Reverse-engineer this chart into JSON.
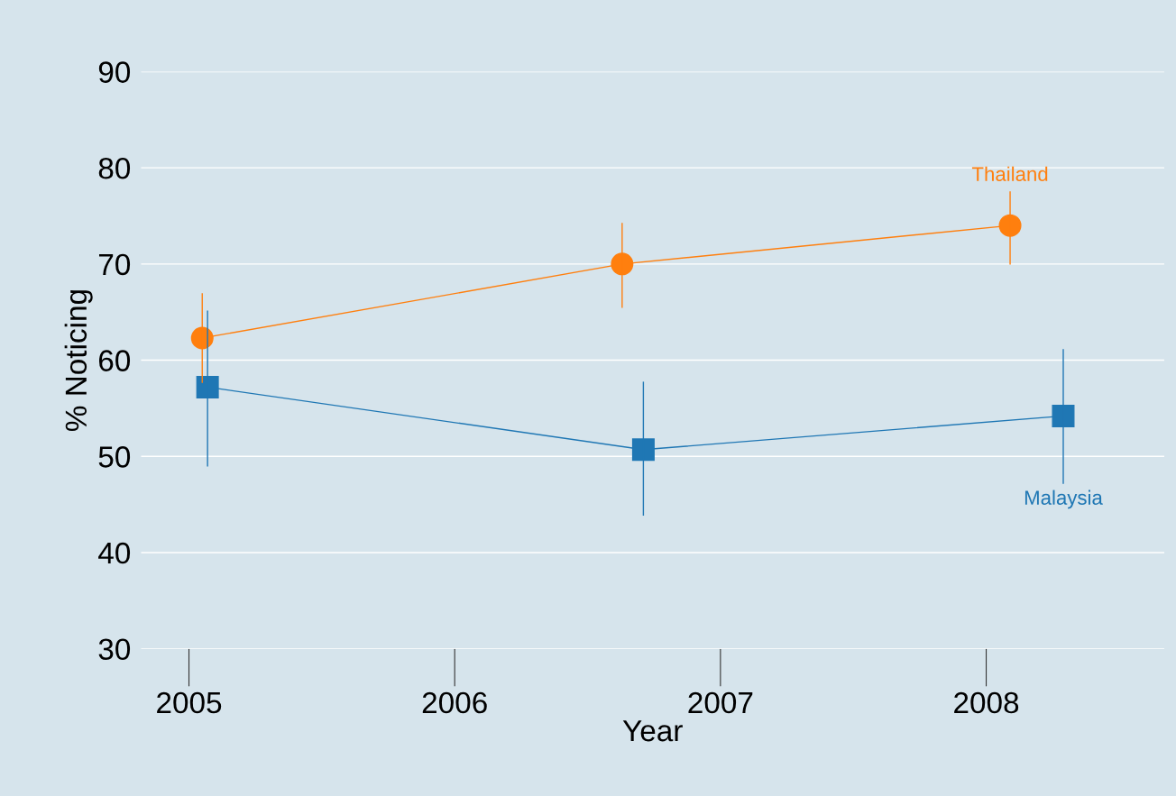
{
  "chart_data": {
    "type": "line",
    "xlabel": "Year",
    "ylabel": "% Noticing",
    "xlim": [
      2004.82,
      2008.67
    ],
    "xticks": [
      2005,
      2006,
      2007,
      2008
    ],
    "ylim": [
      30,
      90
    ],
    "yticks": [
      30,
      40,
      50,
      60,
      70,
      80,
      90
    ],
    "grid": "y",
    "line_style": "solid",
    "series": [
      {
        "name": "Thailand",
        "color": "#ff7f0e",
        "marker": "circle",
        "x": [
          2005.05,
          2006.63,
          2008.09
        ],
        "values": [
          62.3,
          70.0,
          74.0
        ],
        "errors": [
          [
            57.7,
            66.9
          ],
          [
            65.5,
            74.2
          ],
          [
            70.0,
            77.5
          ]
        ]
      },
      {
        "name": "Malaysia",
        "color": "#1f77b4",
        "marker": "square",
        "x": [
          2005.07,
          2006.71,
          2008.29
        ],
        "values": [
          57.2,
          50.7,
          54.2
        ],
        "errors": [
          [
            49.0,
            65.1
          ],
          [
            43.9,
            57.7
          ],
          [
            47.2,
            61.1
          ]
        ]
      }
    ]
  }
}
